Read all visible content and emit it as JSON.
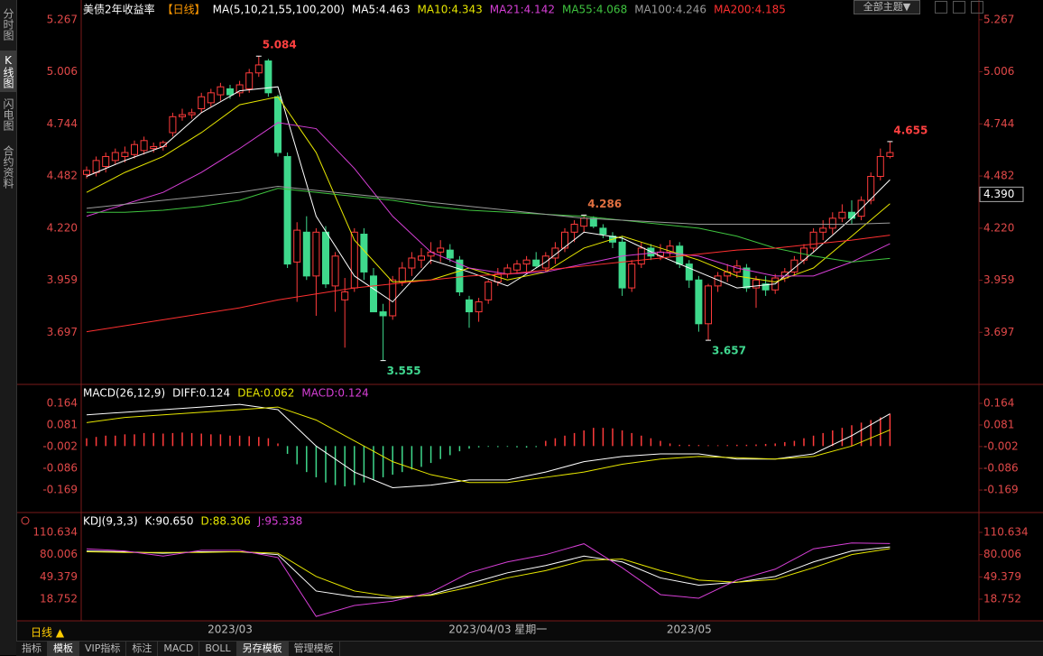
{
  "ui": {
    "sidebar": [
      "分时图",
      "K线图",
      "闪电图",
      "合约资料"
    ],
    "theme_button": "全部主题▼",
    "period_button": "日线 ▲",
    "toolbar": [
      "指标",
      "模板",
      "VIP指标",
      "标注",
      "MACD",
      "BOLL",
      "另存模板",
      "管理模板"
    ]
  },
  "chart_data": [
    {
      "type": "candlestick",
      "title": "美债2年收益率",
      "period": "【日线】",
      "indicator": "MA(5,10,21,55,100,200)",
      "up_color": "#ff3b3b",
      "down_color": "#3fd98c",
      "categories": [
        null,
        null,
        null,
        null,
        null,
        null,
        null,
        null,
        null,
        null,
        null,
        null,
        null,
        null,
        null,
        "2023/03",
        null,
        null,
        null,
        null,
        null,
        null,
        null,
        null,
        null,
        null,
        null,
        null,
        null,
        null,
        null,
        null,
        null,
        null,
        null,
        null,
        null,
        null,
        null,
        null,
        null,
        null,
        null,
        "2023/04/03 星期一",
        null,
        null,
        null,
        null,
        null,
        null,
        null,
        null,
        null,
        null,
        null,
        null,
        null,
        null,
        null,
        null,
        null,
        null,
        null,
        "2023/05",
        null,
        null,
        null,
        null,
        null,
        null,
        null,
        null,
        null,
        null,
        null,
        null,
        null,
        null,
        null,
        null,
        null,
        null,
        null,
        null,
        null
      ],
      "candles": [
        [
          4.49,
          4.53,
          4.47,
          4.51
        ],
        [
          4.5,
          4.58,
          4.48,
          4.56
        ],
        [
          4.53,
          4.6,
          4.5,
          4.58
        ],
        [
          4.56,
          4.62,
          4.54,
          4.6
        ],
        [
          4.58,
          4.63,
          4.55,
          4.6
        ],
        [
          4.59,
          4.66,
          4.57,
          4.64
        ],
        [
          4.61,
          4.68,
          4.59,
          4.66
        ],
        [
          4.62,
          4.65,
          4.6,
          4.63
        ],
        [
          4.63,
          4.66,
          4.61,
          4.65
        ],
        [
          4.7,
          4.8,
          4.68,
          4.78
        ],
        [
          4.78,
          4.82,
          4.76,
          4.79
        ],
        [
          4.79,
          4.82,
          4.77,
          4.8
        ],
        [
          4.82,
          4.9,
          4.8,
          4.88
        ],
        [
          4.85,
          4.92,
          4.83,
          4.9
        ],
        [
          4.89,
          4.95,
          4.86,
          4.93
        ],
        [
          4.92,
          4.94,
          4.87,
          4.89
        ],
        [
          4.9,
          4.96,
          4.88,
          4.94
        ],
        [
          4.92,
          5.02,
          4.9,
          5.0
        ],
        [
          5.0,
          5.084,
          4.98,
          5.04
        ],
        [
          5.06,
          5.07,
          4.88,
          4.9
        ],
        [
          4.88,
          4.89,
          4.58,
          4.6
        ],
        [
          4.58,
          4.6,
          4.02,
          4.04
        ],
        [
          4.05,
          4.25,
          3.85,
          4.21
        ],
        [
          4.2,
          4.28,
          3.96,
          3.98
        ],
        [
          3.98,
          4.22,
          3.78,
          4.2
        ],
        [
          4.2,
          4.23,
          3.92,
          3.94
        ],
        [
          3.93,
          4.1,
          3.8,
          4.08
        ],
        [
          3.86,
          3.97,
          3.62,
          3.9
        ],
        [
          3.92,
          4.22,
          3.9,
          4.2
        ],
        [
          4.19,
          4.22,
          3.96,
          4.0
        ],
        [
          3.98,
          4.02,
          3.8,
          3.8
        ],
        [
          3.8,
          3.84,
          3.555,
          3.78
        ],
        [
          3.78,
          3.98,
          3.76,
          3.96
        ],
        [
          3.95,
          4.05,
          3.93,
          4.02
        ],
        [
          4.02,
          4.1,
          3.98,
          4.07
        ],
        [
          4.06,
          4.12,
          4.02,
          4.08
        ],
        [
          4.08,
          4.15,
          4.04,
          4.1
        ],
        [
          4.1,
          4.16,
          4.05,
          4.12
        ],
        [
          4.11,
          4.14,
          4.05,
          4.07
        ],
        [
          4.06,
          4.08,
          3.88,
          3.9
        ],
        [
          3.86,
          3.88,
          3.72,
          3.8
        ],
        [
          3.8,
          3.87,
          3.75,
          3.85
        ],
        [
          3.86,
          3.96,
          3.84,
          3.95
        ],
        [
          3.95,
          4.02,
          3.93,
          3.99
        ],
        [
          3.99,
          4.04,
          3.97,
          4.02
        ],
        [
          4.01,
          4.06,
          3.99,
          4.04
        ],
        [
          4.04,
          4.08,
          4.0,
          4.06
        ],
        [
          4.06,
          4.1,
          4.02,
          4.03
        ],
        [
          4.02,
          4.1,
          4.0,
          4.08
        ],
        [
          4.07,
          4.15,
          4.04,
          4.12
        ],
        [
          4.12,
          4.22,
          4.1,
          4.2
        ],
        [
          4.2,
          4.26,
          4.15,
          4.24
        ],
        [
          4.23,
          4.286,
          4.2,
          4.27
        ],
        [
          4.27,
          4.28,
          4.22,
          4.23
        ],
        [
          4.22,
          4.24,
          4.17,
          4.19
        ],
        [
          4.18,
          4.2,
          4.12,
          4.15
        ],
        [
          4.15,
          4.18,
          3.88,
          3.92
        ],
        [
          3.92,
          4.06,
          3.9,
          4.04
        ],
        [
          4.04,
          4.15,
          4.02,
          4.12
        ],
        [
          4.12,
          4.14,
          4.06,
          4.08
        ],
        [
          4.08,
          4.14,
          4.06,
          4.1
        ],
        [
          4.1,
          4.16,
          4.08,
          4.13
        ],
        [
          4.13,
          4.15,
          4.02,
          4.04
        ],
        [
          4.04,
          4.06,
          3.92,
          3.96
        ],
        [
          3.96,
          3.98,
          3.7,
          3.74
        ],
        [
          3.74,
          3.94,
          3.657,
          3.93
        ],
        [
          3.93,
          4.0,
          3.9,
          3.98
        ],
        [
          3.98,
          4.04,
          3.95,
          4.0
        ],
        [
          4.0,
          4.06,
          3.97,
          4.03
        ],
        [
          4.02,
          4.04,
          3.9,
          3.92
        ],
        [
          3.92,
          3.98,
          3.82,
          3.96
        ],
        [
          3.94,
          3.98,
          3.88,
          3.91
        ],
        [
          3.91,
          3.99,
          3.89,
          3.97
        ],
        [
          3.97,
          4.02,
          3.95,
          4.0
        ],
        [
          4.0,
          4.08,
          3.98,
          4.06
        ],
        [
          4.06,
          4.14,
          4.04,
          4.12
        ],
        [
          4.12,
          4.22,
          4.1,
          4.2
        ],
        [
          4.2,
          4.26,
          4.16,
          4.22
        ],
        [
          4.22,
          4.3,
          4.19,
          4.27
        ],
        [
          4.27,
          4.34,
          4.25,
          4.3
        ],
        [
          4.3,
          4.36,
          4.24,
          4.27
        ],
        [
          4.28,
          4.38,
          4.26,
          4.36
        ],
        [
          4.36,
          4.5,
          4.34,
          4.48
        ],
        [
          4.48,
          4.62,
          4.46,
          4.58
        ],
        [
          4.58,
          4.655,
          4.57,
          4.6
        ]
      ],
      "x": [
        0,
        4,
        8,
        12,
        16,
        20,
        24,
        28,
        32,
        36,
        40,
        44,
        48,
        52,
        56,
        60,
        64,
        68,
        72,
        76,
        80,
        84
      ],
      "series": [
        {
          "name": "MA5:4.463",
          "color": "#ffffff",
          "values": [
            4.48,
            4.56,
            4.63,
            4.8,
            4.91,
            4.93,
            4.28,
            3.98,
            3.85,
            4.06,
            4.0,
            3.93,
            4.05,
            4.2,
            4.17,
            4.08,
            4.0,
            3.92,
            3.94,
            4.1,
            4.27,
            4.463
          ]
        },
        {
          "name": "MA10:4.343",
          "color": "#e6e600",
          "values": [
            4.4,
            4.5,
            4.58,
            4.7,
            4.84,
            4.88,
            4.6,
            4.16,
            3.95,
            3.96,
            4.02,
            3.96,
            4.0,
            4.12,
            4.18,
            4.12,
            4.06,
            3.98,
            3.95,
            4.02,
            4.18,
            4.343
          ]
        },
        {
          "name": "MA21:4.142",
          "color": "#d63fd6",
          "values": [
            4.28,
            4.34,
            4.4,
            4.5,
            4.62,
            4.75,
            4.72,
            4.52,
            4.28,
            4.1,
            4.02,
            3.99,
            4.0,
            4.04,
            4.08,
            4.1,
            4.08,
            4.02,
            3.98,
            3.98,
            4.05,
            4.142
          ]
        },
        {
          "name": "MA55:4.068",
          "color": "#3fc43f",
          "values": [
            4.3,
            4.3,
            4.31,
            4.33,
            4.36,
            4.42,
            4.4,
            4.38,
            4.36,
            4.33,
            4.31,
            4.3,
            4.29,
            4.28,
            4.26,
            4.24,
            4.22,
            4.18,
            4.12,
            4.08,
            4.05,
            4.068
          ]
        },
        {
          "name": "MA100:4.246",
          "color": "#9a9a9a",
          "values": [
            4.32,
            4.34,
            4.36,
            4.38,
            4.4,
            4.43,
            4.41,
            4.39,
            4.37,
            4.35,
            4.33,
            4.31,
            4.29,
            4.27,
            4.26,
            4.25,
            4.24,
            4.24,
            4.24,
            4.24,
            4.24,
            4.246
          ]
        },
        {
          "name": "MA200:4.185",
          "color": "#ff3030",
          "values": [
            3.7,
            3.73,
            3.76,
            3.79,
            3.82,
            3.86,
            3.89,
            3.92,
            3.94,
            3.96,
            3.98,
            3.99,
            4.01,
            4.03,
            4.05,
            4.07,
            4.09,
            4.11,
            4.12,
            4.14,
            4.16,
            4.185
          ]
        }
      ],
      "annotations": [
        {
          "x": 18,
          "value": 5.084,
          "color": "#ff4040"
        },
        {
          "x": 31,
          "value": 3.555,
          "color": "#40d890"
        },
        {
          "x": 52,
          "value": 4.286,
          "color": "#e07040"
        },
        {
          "x": 65,
          "value": 3.657,
          "color": "#40d890"
        },
        {
          "x": 84,
          "value": 4.655,
          "color": "#ff4040"
        }
      ],
      "price_tag": {
        "value": 4.39,
        "label": "4.390"
      },
      "ylim": [
        3.44,
        5.357
      ],
      "yticks": [
        5.267,
        5.006,
        4.744,
        4.482,
        {
          "value": 4.22,
          "label": "4.220"
        },
        3.959,
        3.697
      ]
    },
    {
      "type": "macd",
      "title": "MACD(26,12,9)",
      "x": [
        0,
        4,
        8,
        12,
        16,
        20,
        24,
        28,
        32,
        36,
        40,
        44,
        48,
        52,
        56,
        60,
        64,
        68,
        72,
        76,
        80,
        84
      ],
      "series": [
        {
          "name": "DIFF:0.124",
          "color": "#ffffff",
          "values": [
            0.12,
            0.13,
            0.14,
            0.15,
            0.16,
            0.14,
            0.0,
            -0.1,
            -0.16,
            -0.15,
            -0.13,
            -0.13,
            -0.1,
            -0.06,
            -0.04,
            -0.03,
            -0.03,
            -0.05,
            -0.05,
            -0.03,
            0.04,
            0.124
          ]
        },
        {
          "name": "DEA:0.062",
          "color": "#e6e600",
          "values": [
            0.09,
            0.11,
            0.12,
            0.13,
            0.14,
            0.15,
            0.1,
            0.02,
            -0.06,
            -0.11,
            -0.14,
            -0.14,
            -0.12,
            -0.1,
            -0.07,
            -0.05,
            -0.04,
            -0.045,
            -0.05,
            -0.04,
            0.0,
            0.062
          ]
        }
      ],
      "histogram": {
        "name": "MACD:0.124",
        "color": "#d63fd6",
        "up_color": "#ff3b3b",
        "down_color": "#3fd98c",
        "values": [
          0.03,
          0.035,
          0.04,
          0.04,
          0.045,
          0.045,
          0.05,
          0.05,
          0.048,
          0.05,
          0.052,
          0.05,
          0.048,
          0.045,
          0.045,
          0.04,
          0.04,
          0.038,
          0.035,
          0.03,
          0.01,
          -0.03,
          -0.07,
          -0.1,
          -0.12,
          -0.14,
          -0.15,
          -0.155,
          -0.15,
          -0.14,
          -0.13,
          -0.12,
          -0.11,
          -0.1,
          -0.09,
          -0.08,
          -0.065,
          -0.05,
          -0.035,
          -0.02,
          -0.01,
          -0.005,
          -0.003,
          -0.004,
          -0.003,
          -0.005,
          -0.006,
          -0.004,
          0.02,
          0.03,
          0.04,
          0.05,
          0.06,
          0.07,
          0.07,
          0.068,
          0.06,
          0.05,
          0.04,
          0.03,
          0.02,
          0.01,
          0.005,
          0.005,
          0.004,
          0.003,
          0.003,
          0.004,
          0.005,
          0.005,
          0.006,
          0.008,
          0.01,
          0.015,
          0.02,
          0.03,
          0.04,
          0.05,
          0.06,
          0.07,
          0.08,
          0.09,
          0.1,
          0.11,
          0.124
        ]
      },
      "ylim": [
        -0.252,
        0.23
      ],
      "yticks": [
        0.164,
        0.081,
        -0.002,
        -0.086,
        -0.169
      ]
    },
    {
      "type": "line",
      "title": "KDJ(9,3,3)",
      "x": [
        0,
        4,
        8,
        12,
        16,
        20,
        24,
        28,
        32,
        36,
        40,
        44,
        48,
        52,
        56,
        60,
        64,
        68,
        72,
        76,
        80,
        84
      ],
      "series": [
        {
          "name": "K:90.650",
          "color": "#ffffff",
          "values": [
            85,
            84,
            82,
            84,
            84,
            80,
            30,
            22,
            20,
            25,
            40,
            55,
            65,
            78,
            70,
            48,
            38,
            42,
            50,
            70,
            85,
            90.65
          ]
        },
        {
          "name": "D:88.306",
          "color": "#e6e600",
          "values": [
            84,
            83,
            83,
            83,
            84,
            82,
            50,
            30,
            22,
            24,
            35,
            48,
            58,
            72,
            74,
            58,
            45,
            42,
            46,
            62,
            80,
            88.306
          ]
        },
        {
          "name": "J:95.338",
          "color": "#d63fd6",
          "values": [
            88,
            85,
            78,
            86,
            86,
            76,
            -5,
            10,
            16,
            28,
            55,
            70,
            80,
            95,
            62,
            25,
            20,
            45,
            60,
            88,
            96,
            95.338
          ]
        }
      ],
      "ylim": [
        -11.05,
        135.47
      ],
      "yticks": [
        110.634,
        80.006,
        49.379,
        18.752
      ]
    }
  ]
}
